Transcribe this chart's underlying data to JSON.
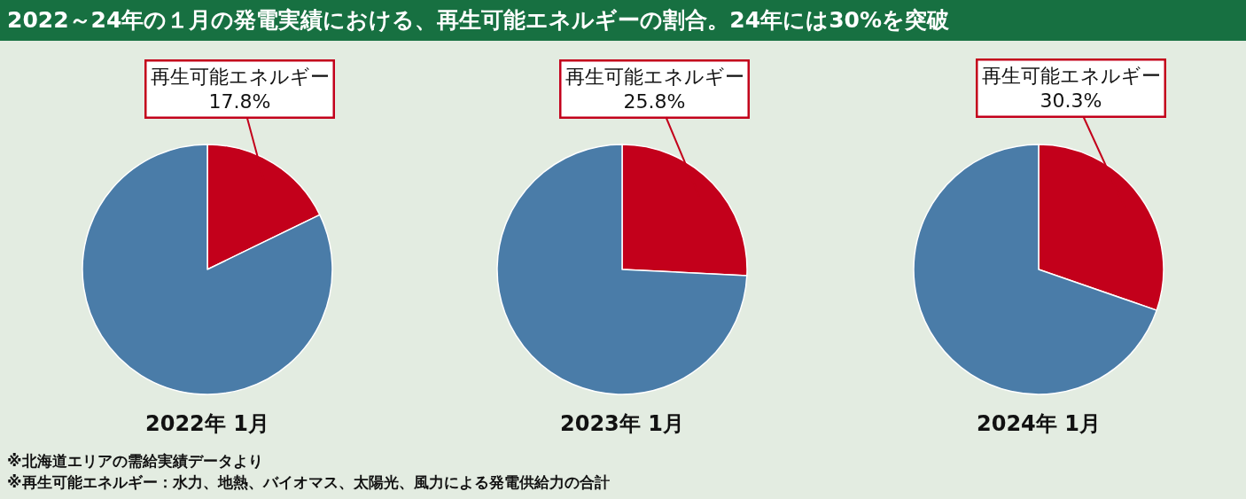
{
  "chart_data": [
    {
      "type": "pie",
      "title": "2022～24年の１月の発電実績における、再生可能エネルギーの割合。24年には30%を突破",
      "xlabel": "2022年 1月",
      "categories": [
        "再生可能エネルギー",
        null
      ],
      "values": [
        17.8,
        82.2
      ],
      "colors": [
        "#c3001b",
        "#4a7ca8"
      ],
      "value_labels": [
        "17.8%",
        null
      ],
      "annotations": [
        "※北海道エリアの需給実績データより",
        "※再生可能エネルギー：水力、地熱、バイオマス、太陽光、風力による発電供給力の合計"
      ]
    },
    {
      "type": "pie",
      "xlabel": "2023年 1月",
      "categories": [
        "再生可能エネルギー",
        null
      ],
      "values": [
        25.8,
        74.2
      ],
      "colors": [
        "#c3001b",
        "#4a7ca8"
      ],
      "value_labels": [
        "25.8%",
        null
      ]
    },
    {
      "type": "pie",
      "xlabel": "2024年 1月",
      "categories": [
        "再生可能エネルギー",
        null
      ],
      "values": [
        30.3,
        69.7
      ],
      "colors": [
        "#c3001b",
        "#4a7ca8"
      ],
      "value_labels": [
        "30.3%",
        null
      ]
    }
  ]
}
